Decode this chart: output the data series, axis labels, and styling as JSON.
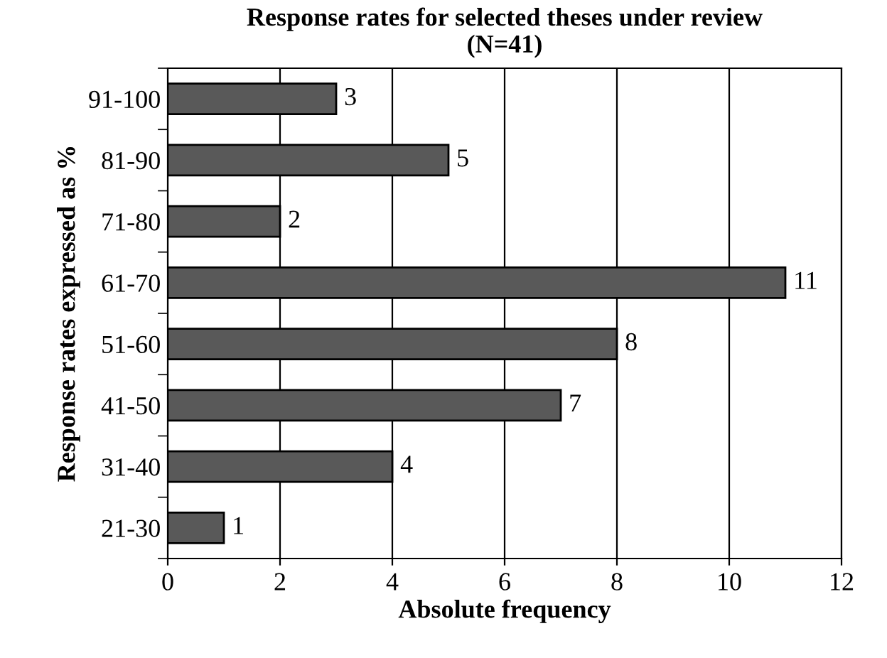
{
  "chart_data": {
    "type": "bar",
    "orientation": "horizontal",
    "title": "Response rates for selected theses under review\n(N=41)",
    "xlabel": "Absolute frequency",
    "ylabel": "Response rates expressed as %",
    "categories": [
      "91-100",
      "81-90",
      "71-80",
      "61-70",
      "51-60",
      "41-50",
      "31-40",
      "21-30"
    ],
    "values": [
      3,
      5,
      2,
      11,
      8,
      7,
      4,
      1
    ],
    "color": "#595959",
    "xlim": [
      0,
      12
    ],
    "xticks": [
      0,
      2,
      4,
      6,
      8,
      10,
      12
    ],
    "grid": "x",
    "data_labels": true
  }
}
